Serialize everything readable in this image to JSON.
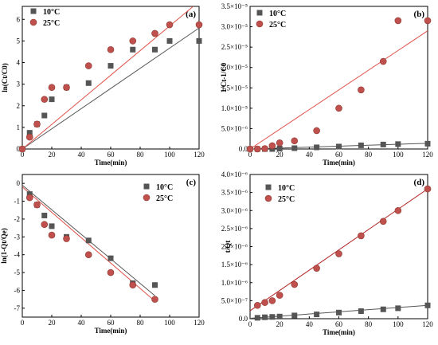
{
  "chart_data": [
    {
      "type": "scatter",
      "panel_label": "(a)",
      "xlabel": "Time(min)",
      "ylabel": "ln(Ct/C0)",
      "xlim": [
        0,
        120
      ],
      "ylim": [
        0,
        6.6
      ],
      "x_ticks": [
        "0",
        "20",
        "40",
        "60",
        "80",
        "100",
        "120"
      ],
      "y_ticks": [
        "0",
        "1",
        "2",
        "3",
        "4",
        "5",
        "6"
      ],
      "legend": "top-left",
      "series": [
        {
          "name": "10°C",
          "marker": "square",
          "color": "#555555",
          "line_color": "#555555",
          "x": [
            0,
            5,
            10,
            15,
            20,
            30,
            45,
            60,
            75,
            90,
            100,
            120
          ],
          "y": [
            0,
            0.75,
            1.15,
            1.55,
            2.3,
            2.85,
            3.05,
            3.85,
            4.6,
            4.6,
            5.0,
            5.0
          ],
          "fit": [
            [
              0,
              0
            ],
            [
              120,
              5.6
            ]
          ]
        },
        {
          "name": "25°C",
          "marker": "circle",
          "color": "#c0504d",
          "line_color": "#e0524a",
          "x": [
            0,
            5,
            10,
            15,
            20,
            30,
            45,
            60,
            75,
            90,
            100,
            120
          ],
          "y": [
            0,
            0.55,
            1.15,
            2.3,
            2.85,
            2.85,
            3.85,
            4.6,
            5.0,
            5.35,
            5.75,
            5.75
          ],
          "fit": [
            [
              0,
              0
            ],
            [
              116,
              6.6
            ]
          ]
        }
      ]
    },
    {
      "type": "scatter",
      "panel_label": "(b)",
      "xlabel": "Time(min)",
      "ylabel": "1/Ct-1/C0",
      "xlim": [
        0,
        120
      ],
      "ylim": [
        0,
        3.5e-05
      ],
      "x_ticks": [
        "0",
        "20",
        "40",
        "60",
        "80",
        "100",
        "120"
      ],
      "y_ticks": [
        "0.0",
        "5.0×10⁻⁶",
        "1.0×10⁻⁵",
        "1.5×10⁻⁵",
        "2.0×10⁻⁵",
        "2.5×10⁻⁵",
        "3.0×10⁻⁵",
        "3.5×10⁻⁵"
      ],
      "legend": "top-left",
      "series": [
        {
          "name": "10°C",
          "marker": "square",
          "color": "#555555",
          "line_color": "#555555",
          "x": [
            0,
            5,
            10,
            15,
            20,
            30,
            45,
            60,
            75,
            90,
            100,
            120
          ],
          "y": [
            0,
            0,
            0,
            0,
            1e-07,
            2e-07,
            4e-07,
            6e-07,
            9e-07,
            1.1e-06,
            1.2e-06,
            1.3e-06
          ],
          "fit": [
            [
              0,
              0
            ],
            [
              120,
              1.4e-06
            ]
          ]
        },
        {
          "name": "25°C",
          "marker": "circle",
          "color": "#c0504d",
          "line_color": "#e0524a",
          "x": [
            0,
            5,
            10,
            15,
            20,
            30,
            45,
            60,
            75,
            90,
            100,
            120
          ],
          "y": [
            0,
            0,
            1e-07,
            8e-07,
            1.5e-06,
            2e-06,
            4.5e-06,
            1e-05,
            1.45e-05,
            2.15e-05,
            3.15e-05,
            3.15e-05
          ],
          "fit": [
            [
              0,
              0
            ],
            [
              120,
              2.9e-05
            ]
          ]
        }
      ]
    },
    {
      "type": "scatter",
      "panel_label": "(c)",
      "xlabel": "Time(min)",
      "ylabel": "ln(1-Qt/Qe)",
      "xlim": [
        0,
        120
      ],
      "ylim": [
        -7.5,
        0.5
      ],
      "x_ticks": [
        "0",
        "20",
        "40",
        "60",
        "80",
        "100",
        "120"
      ],
      "y_ticks": [
        "0",
        "-1",
        "-2",
        "-3",
        "-4",
        "-5",
        "-6",
        "-7"
      ],
      "legend": "top-right",
      "series": [
        {
          "name": "10°C",
          "marker": "square",
          "color": "#555555",
          "line_color": "#555555",
          "x": [
            5,
            10,
            15,
            20,
            30,
            45,
            60,
            75,
            90
          ],
          "y": [
            -0.6,
            -1.2,
            -1.8,
            -2.4,
            -3.0,
            -3.2,
            -4.2,
            -5.6,
            -5.7
          ],
          "fit": [
            [
              0,
              -0.1
            ],
            [
              90,
              -6.3
            ]
          ]
        },
        {
          "name": "25°C",
          "marker": "circle",
          "color": "#c0504d",
          "line_color": "#e0524a",
          "x": [
            5,
            10,
            15,
            20,
            30,
            45,
            60,
            75,
            90
          ],
          "y": [
            -0.8,
            -1.2,
            -2.3,
            -2.9,
            -3.1,
            -4.0,
            -5.0,
            -5.7,
            -6.5
          ],
          "fit": [
            [
              0,
              -0.2
            ],
            [
              90,
              -6.6
            ]
          ]
        }
      ]
    },
    {
      "type": "scatter",
      "panel_label": "(d)",
      "xlabel": "Time(min)",
      "ylabel": "t/Qt",
      "xlim": [
        0,
        120
      ],
      "ylim": [
        0,
        4e-06
      ],
      "x_ticks": [
        "0",
        "20",
        "40",
        "60",
        "80",
        "100",
        "120"
      ],
      "y_ticks": [
        "0.0",
        "5.0×10⁻⁷",
        "1.0×10⁻⁶",
        "1.5×10⁻⁶",
        "2.0×10⁻⁶",
        "2.5×10⁻⁶",
        "3.0×10⁻⁶",
        "3.5×10⁻⁶",
        "4.0×10⁻⁶"
      ],
      "legend": "top-left",
      "series": [
        {
          "name": "10°C",
          "marker": "square",
          "color": "#555555",
          "line_color": "#555555",
          "x": [
            5,
            10,
            15,
            20,
            30,
            45,
            60,
            75,
            90,
            100,
            120
          ],
          "y": [
            2.5e-08,
            4e-08,
            5e-08,
            6e-08,
            9e-08,
            1.2e-07,
            1.7e-07,
            2.1e-07,
            2.6e-07,
            2.9e-07,
            3.7e-07
          ],
          "fit": [
            [
              0,
              1e-08
            ],
            [
              120,
              3.7e-07
            ]
          ]
        },
        {
          "name": "25°C",
          "marker": "circle",
          "color": "#c0504d",
          "line_color": "#b22222",
          "x": [
            5,
            10,
            15,
            20,
            30,
            45,
            60,
            75,
            90,
            100,
            120
          ],
          "y": [
            3.7e-07,
            4.5e-07,
            5e-07,
            6.5e-07,
            9.5e-07,
            1.4e-06,
            1.8e-06,
            2.3e-06,
            2.7e-06,
            3e-06,
            3.6e-06
          ],
          "fit": [
            [
              0,
              2.2e-07
            ],
            [
              120,
              3.6e-06
            ]
          ]
        }
      ]
    }
  ]
}
